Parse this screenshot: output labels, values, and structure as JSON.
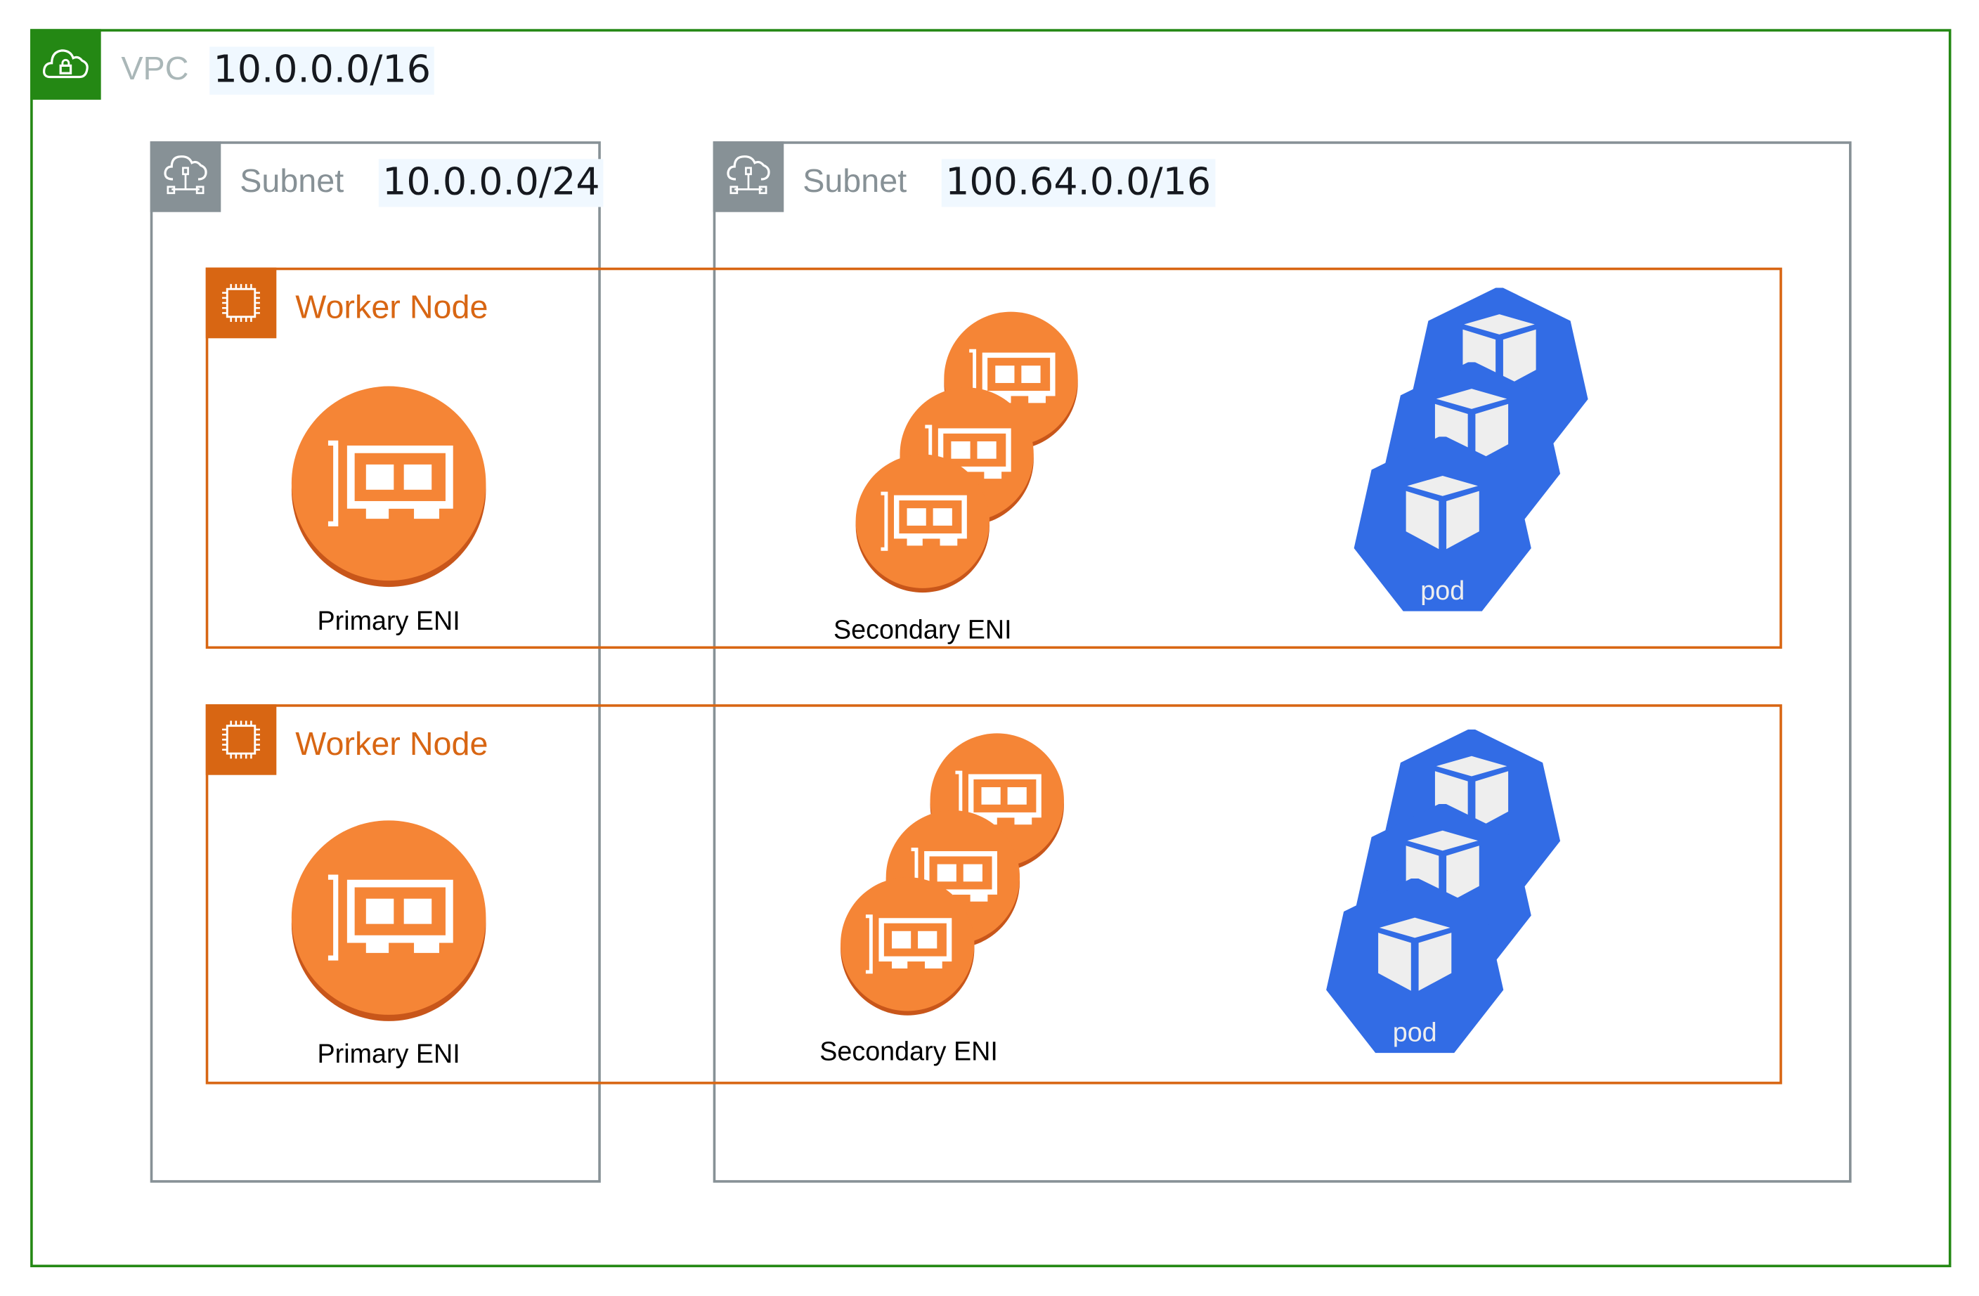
{
  "colors": {
    "vpc": "#248814",
    "subnet": "#879196",
    "node": "#d86613",
    "eni": "#f58536",
    "eni_shadow": "#c8561a",
    "pod": "#326ce5",
    "pod_glyph": "#eeeeee"
  },
  "vpc": {
    "label": "VPC",
    "cidr": "10.0.0.0/16",
    "icon": "vpc-lock-cloud-icon"
  },
  "subnets": [
    {
      "label": "Subnet",
      "cidr": "10.0.0.0/24",
      "icon": "subnet-cloud-icon"
    },
    {
      "label": "Subnet",
      "cidr": "100.64.0.0/16",
      "icon": "subnet-cloud-icon"
    }
  ],
  "nodes": [
    {
      "label": "Worker Node",
      "icon": "ec2-chip-icon",
      "primary": "Primary ENI",
      "secondary": "Secondary ENI",
      "pod": "pod"
    },
    {
      "label": "Worker Node",
      "icon": "ec2-chip-icon",
      "primary": "Primary ENI",
      "secondary": "Secondary ENI",
      "pod": "pod"
    }
  ]
}
